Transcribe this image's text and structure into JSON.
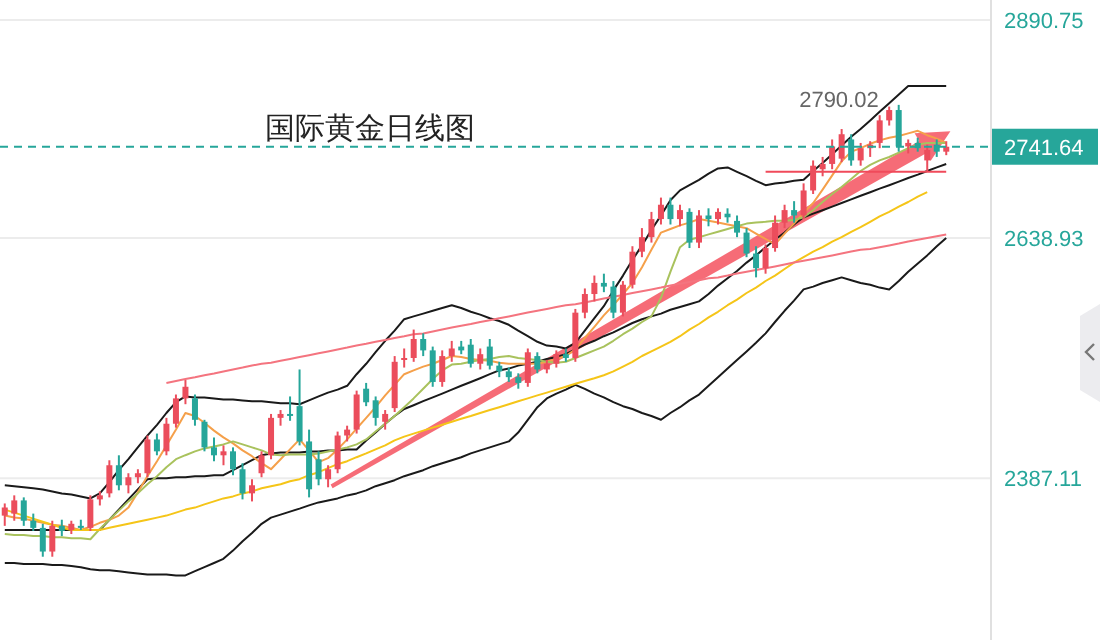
{
  "chart_data": {
    "type": "candlestick",
    "title": "国际黄金日线图",
    "categories": [
      null,
      null,
      null,
      null,
      null,
      null,
      null,
      null,
      null,
      null,
      null,
      null,
      null,
      null,
      null,
      null,
      null,
      null,
      null,
      null,
      null,
      null,
      null,
      null,
      null,
      null,
      null,
      null,
      null,
      null,
      null,
      null,
      null,
      null,
      null,
      null,
      null,
      null,
      null,
      null,
      null,
      null,
      null,
      null,
      null,
      null,
      null,
      null,
      null,
      null,
      null,
      null,
      null,
      null,
      null,
      null,
      null,
      null,
      null,
      null,
      null,
      null,
      null,
      null,
      null,
      null,
      null,
      null,
      null,
      null,
      null,
      null,
      null,
      null,
      null,
      null,
      null,
      null,
      null,
      null,
      null,
      null,
      null,
      null,
      null,
      null,
      null,
      null,
      null,
      null,
      null,
      null,
      null,
      null,
      null,
      null,
      null,
      null,
      null,
      null
    ],
    "ohlc": [
      [
        2350,
        2362,
        2340,
        2358
      ],
      [
        2352,
        2370,
        2345,
        2365
      ],
      [
        2365,
        2368,
        2340,
        2345
      ],
      [
        2345,
        2352,
        2335,
        2338
      ],
      [
        2338,
        2342,
        2310,
        2315
      ],
      [
        2315,
        2345,
        2310,
        2340
      ],
      [
        2340,
        2346,
        2330,
        2335
      ],
      [
        2336,
        2345,
        2332,
        2342
      ],
      [
        2340,
        2346,
        2336,
        2338
      ],
      [
        2338,
        2370,
        2335,
        2366
      ],
      [
        2366,
        2374,
        2360,
        2370
      ],
      [
        2372,
        2405,
        2368,
        2400
      ],
      [
        2400,
        2410,
        2375,
        2380
      ],
      [
        2380,
        2392,
        2372,
        2388
      ],
      [
        2388,
        2396,
        2382,
        2392
      ],
      [
        2392,
        2430,
        2388,
        2426
      ],
      [
        2426,
        2432,
        2410,
        2414
      ],
      [
        2414,
        2448,
        2410,
        2442
      ],
      [
        2442,
        2472,
        2438,
        2468
      ],
      [
        2468,
        2487,
        2462,
        2480
      ],
      [
        2468,
        2472,
        2440,
        2446
      ],
      [
        2444,
        2446,
        2414,
        2418
      ],
      [
        2418,
        2428,
        2404,
        2410
      ],
      [
        2410,
        2420,
        2400,
        2414
      ],
      [
        2414,
        2418,
        2390,
        2396
      ],
      [
        2396,
        2402,
        2366,
        2372
      ],
      [
        2372,
        2386,
        2364,
        2380
      ],
      [
        2392,
        2414,
        2388,
        2410
      ],
      [
        2410,
        2452,
        2406,
        2448
      ],
      [
        2448,
        2456,
        2440,
        2452
      ],
      [
        2452,
        2470,
        2445,
        2450
      ],
      [
        2460,
        2498,
        2420,
        2424
      ],
      [
        2424,
        2436,
        2368,
        2376
      ],
      [
        2406,
        2414,
        2380,
        2386
      ],
      [
        2386,
        2400,
        2378,
        2396
      ],
      [
        2396,
        2434,
        2392,
        2430
      ],
      [
        2430,
        2440,
        2424,
        2436
      ],
      [
        2436,
        2476,
        2432,
        2472
      ],
      [
        2478,
        2484,
        2460,
        2464
      ],
      [
        2466,
        2470,
        2440,
        2448
      ],
      [
        2444,
        2456,
        2436,
        2452
      ],
      [
        2458,
        2512,
        2454,
        2506
      ],
      [
        2508,
        2520,
        2500,
        2510
      ],
      [
        2510,
        2540,
        2506,
        2530
      ],
      [
        2530,
        2536,
        2512,
        2518
      ],
      [
        2518,
        2522,
        2480,
        2485
      ],
      [
        2485,
        2518,
        2480,
        2512
      ],
      [
        2512,
        2528,
        2506,
        2520
      ],
      [
        2522,
        2528,
        2514,
        2518
      ],
      [
        2524,
        2530,
        2500,
        2504
      ],
      [
        2504,
        2520,
        2498,
        2514
      ],
      [
        2522,
        2530,
        2498,
        2502
      ],
      [
        2502,
        2506,
        2490,
        2496
      ],
      [
        2496,
        2500,
        2485,
        2490
      ],
      [
        2490,
        2494,
        2478,
        2484
      ],
      [
        2484,
        2520,
        2480,
        2516
      ],
      [
        2512,
        2516,
        2494,
        2498
      ],
      [
        2498,
        2508,
        2494,
        2504
      ],
      [
        2504,
        2518,
        2500,
        2514
      ],
      [
        2514,
        2520,
        2506,
        2510
      ],
      [
        2510,
        2562,
        2506,
        2558
      ],
      [
        2558,
        2584,
        2552,
        2578
      ],
      [
        2578,
        2598,
        2570,
        2590
      ],
      [
        2590,
        2600,
        2580,
        2586
      ],
      [
        2586,
        2592,
        2552,
        2558
      ],
      [
        2558,
        2592,
        2554,
        2588
      ],
      [
        2588,
        2630,
        2584,
        2624
      ],
      [
        2624,
        2650,
        2618,
        2640
      ],
      [
        2640,
        2668,
        2634,
        2660
      ],
      [
        2660,
        2684,
        2654,
        2676
      ],
      [
        2676,
        2684,
        2654,
        2660
      ],
      [
        2660,
        2676,
        2652,
        2670
      ],
      [
        2668,
        2672,
        2628,
        2634
      ],
      [
        2634,
        2670,
        2628,
        2664
      ],
      [
        2664,
        2672,
        2652,
        2660
      ],
      [
        2660,
        2672,
        2654,
        2668
      ],
      [
        2666,
        2672,
        2656,
        2662
      ],
      [
        2658,
        2664,
        2640,
        2645
      ],
      [
        2645,
        2650,
        2618,
        2622
      ],
      [
        2622,
        2630,
        2596,
        2606
      ],
      [
        2606,
        2632,
        2600,
        2628
      ],
      [
        2628,
        2664,
        2624,
        2656
      ],
      [
        2656,
        2676,
        2650,
        2670
      ],
      [
        2670,
        2680,
        2656,
        2664
      ],
      [
        2664,
        2700,
        2660,
        2692
      ],
      [
        2692,
        2726,
        2688,
        2720
      ],
      [
        2716,
        2730,
        2708,
        2722
      ],
      [
        2722,
        2750,
        2716,
        2742
      ],
      [
        2728,
        2762,
        2724,
        2756
      ],
      [
        2750,
        2756,
        2720,
        2726
      ],
      [
        2726,
        2746,
        2720,
        2740
      ],
      [
        2740,
        2748,
        2730,
        2744
      ],
      [
        2746,
        2778,
        2740,
        2772
      ],
      [
        2772,
        2788,
        2766,
        2784
      ],
      [
        2784,
        2790.02,
        2736,
        2742
      ],
      [
        2742,
        2750,
        2734,
        2746
      ],
      [
        2746,
        2752,
        2736,
        2740
      ],
      [
        2726,
        2744,
        2714,
        2738
      ],
      [
        2744,
        2750,
        2730,
        2736
      ],
      [
        2736,
        2748,
        2732,
        2741.64
      ]
    ],
    "colors": [
      "#eb4d5c",
      "#eb4d5c",
      "#26a69a",
      "#26a69a",
      "#26a69a",
      "#eb4d5c",
      "#26a69a",
      "#eb4d5c",
      "#26a69a",
      "#eb4d5c",
      "#eb4d5c",
      "#eb4d5c",
      "#26a69a",
      "#eb4d5c",
      "#eb4d5c",
      "#eb4d5c",
      "#26a69a",
      "#eb4d5c",
      "#eb4d5c",
      "#eb4d5c",
      "#26a69a",
      "#26a69a",
      "#26a69a",
      "#eb4d5c",
      "#26a69a",
      "#26a69a",
      "#eb4d5c",
      "#eb4d5c",
      "#eb4d5c",
      "#eb4d5c",
      "#26a69a",
      "#26a69a",
      "#26a69a",
      "#26a69a",
      "#eb4d5c",
      "#eb4d5c",
      "#eb4d5c",
      "#eb4d5c",
      "#26a69a",
      "#26a69a",
      "#eb4d5c",
      "#eb4d5c",
      "#eb4d5c",
      "#eb4d5c",
      "#26a69a",
      "#26a69a",
      "#eb4d5c",
      "#eb4d5c",
      "#26a69a",
      "#26a69a",
      "#eb4d5c",
      "#26a69a",
      "#26a69a",
      "#26a69a",
      "#26a69a",
      "#eb4d5c",
      "#26a69a",
      "#eb4d5c",
      "#eb4d5c",
      "#26a69a",
      "#eb4d5c",
      "#eb4d5c",
      "#eb4d5c",
      "#26a69a",
      "#26a69a",
      "#eb4d5c",
      "#eb4d5c",
      "#eb4d5c",
      "#eb4d5c",
      "#eb4d5c",
      "#26a69a",
      "#eb4d5c",
      "#26a69a",
      "#eb4d5c",
      "#26a69a",
      "#eb4d5c",
      "#26a69a",
      "#26a69a",
      "#26a69a",
      "#26a69a",
      "#eb4d5c",
      "#eb4d5c",
      "#eb4d5c",
      "#26a69a",
      "#eb4d5c",
      "#eb4d5c",
      "#eb4d5c",
      "#eb4d5c",
      "#eb4d5c",
      "#26a69a",
      "#eb4d5c",
      "#eb4d5c",
      "#eb4d5c",
      "#eb4d5c",
      "#26a69a",
      "#eb4d5c",
      "#26a69a",
      "#eb4d5c",
      "#26a69a",
      "#eb4d5c"
    ],
    "series": [
      {
        "type": "line",
        "color": "#1a1a1a",
        "values": [
          2380,
          2379,
          2378,
          2377,
          2376,
          2374,
          2372,
          2371,
          2369,
          2367,
          2372,
          2383,
          2395,
          2406,
          2418,
          2430,
          2441,
          2453,
          2464,
          2470,
          2469,
          2469,
          2468,
          2467,
          2467,
          2466,
          2465,
          2465,
          2464,
          2463,
          2463,
          2462,
          2466,
          2470,
          2474,
          2477,
          2481,
          2493,
          2504,
          2516,
          2528,
          2539,
          2551,
          2554,
          2557,
          2560,
          2563,
          2566,
          2563,
          2559,
          2556,
          2552,
          2549,
          2545,
          2539,
          2533,
          2527,
          2523,
          2522,
          2520,
          2526,
          2539,
          2552,
          2565,
          2582,
          2598,
          2615,
          2631,
          2648,
          2664,
          2681,
          2692,
          2698,
          2704,
          2711,
          2717,
          2718,
          2713,
          2708,
          2703,
          2698,
          2700,
          2701,
          2703,
          2704,
          2714,
          2723,
          2733,
          2743,
          2753,
          2762,
          2772,
          2782,
          2792,
          2802,
          2812,
          2812,
          2812,
          2812,
          2812
        ]
      },
      {
        "type": "line",
        "color": "#1a1a1a",
        "values": [
          2336,
          2336,
          2336,
          2336,
          2336,
          2336,
          2336,
          2336,
          2336,
          2336,
          2336,
          2346,
          2356,
          2366,
          2376,
          2386,
          2387,
          2387,
          2388,
          2388,
          2389,
          2389,
          2390,
          2390,
          2395,
          2400,
          2405,
          2410,
          2412,
          2413,
          2413,
          2413,
          2414,
          2414,
          2415,
          2415,
          2416,
          2416,
          2425,
          2433,
          2442,
          2450,
          2457,
          2461,
          2465,
          2469,
          2473,
          2477,
          2481,
          2485,
          2489,
          2493,
          2497,
          2499,
          2502,
          2504,
          2506,
          2509,
          2511,
          2514,
          2519,
          2524,
          2528,
          2533,
          2537,
          2542,
          2547,
          2551,
          2554,
          2557,
          2561,
          2564,
          2567,
          2570,
          2578,
          2587,
          2595,
          2603,
          2612,
          2620,
          2629,
          2637,
          2645,
          2654,
          2662,
          2666,
          2670,
          2674,
          2678,
          2682,
          2686,
          2690,
          2694,
          2698,
          2702,
          2706,
          2710,
          2714,
          2718,
          2722
        ]
      },
      {
        "type": "line",
        "color": "#1a1a1a",
        "values": [
          2304,
          2304,
          2303,
          2303,
          2303,
          2302,
          2302,
          2301,
          2300,
          2298,
          2297,
          2297,
          2296,
          2295,
          2294,
          2293,
          2293,
          2293,
          2292,
          2292,
          2296,
          2300,
          2304,
          2308,
          2316,
          2325,
          2333,
          2342,
          2348,
          2351,
          2354,
          2357,
          2360,
          2363,
          2365,
          2367,
          2370,
          2372,
          2375,
          2379,
          2382,
          2385,
          2389,
          2392,
          2395,
          2399,
          2402,
          2405,
          2408,
          2412,
          2415,
          2418,
          2421,
          2424,
          2433,
          2446,
          2459,
          2468,
          2473,
          2477,
          2482,
          2478,
          2473,
          2469,
          2464,
          2460,
          2457,
          2453,
          2450,
          2446,
          2453,
          2459,
          2466,
          2472,
          2481,
          2490,
          2499,
          2508,
          2517,
          2526,
          2536,
          2548,
          2560,
          2571,
          2583,
          2586,
          2590,
          2593,
          2596,
          2593,
          2590,
          2588,
          2585,
          2583,
          2592,
          2602,
          2611,
          2620,
          2630,
          2639
        ]
      },
      {
        "type": "line",
        "color": "#f5a04a",
        "values": [
          2350,
          2348,
          2347,
          2345,
          2343,
          2341,
          2340,
          2338,
          2336,
          2339,
          2343,
          2346,
          2350,
          2358,
          2373,
          2389,
          2404,
          2420,
          2436,
          2453,
          2450,
          2443,
          2435,
          2428,
          2422,
          2415,
          2409,
          2402,
          2396,
          2406,
          2416,
          2426,
          2415,
          2403,
          2407,
          2416,
          2426,
          2437,
          2448,
          2459,
          2471,
          2482,
          2493,
          2497,
          2501,
          2504,
          2508,
          2512,
          2511,
          2509,
          2508,
          2507,
          2505,
          2504,
          2504,
          2504,
          2504,
          2506,
          2509,
          2512,
          2519,
          2531,
          2543,
          2555,
          2566,
          2578,
          2590,
          2607,
          2626,
          2645,
          2649,
          2653,
          2656,
          2660,
          2658,
          2656,
          2654,
          2652,
          2650,
          2644,
          2638,
          2632,
          2644,
          2655,
          2667,
          2678,
          2693,
          2709,
          2725,
          2736,
          2740,
          2745,
          2749,
          2752,
          2754,
          2757,
          2760,
          2755,
          2751,
          2746
        ]
      },
      {
        "type": "line",
        "color": "#a9c25d",
        "values": [
          2332,
          2331,
          2331,
          2330,
          2330,
          2329,
          2329,
          2328,
          2328,
          2327,
          2337,
          2346,
          2355,
          2364,
          2372,
          2381,
          2389,
          2398,
          2406,
          2410,
          2414,
          2417,
          2419,
          2421,
          2424,
          2421,
          2418,
          2415,
          2411,
          2410,
          2411,
          2411,
          2411,
          2412,
          2414,
          2416,
          2418,
          2421,
          2426,
          2434,
          2442,
          2450,
          2459,
          2468,
          2478,
          2488,
          2497,
          2503,
          2504,
          2506,
          2508,
          2509,
          2511,
          2512,
          2510,
          2509,
          2508,
          2506,
          2505,
          2506,
          2510,
          2514,
          2518,
          2522,
          2528,
          2535,
          2541,
          2548,
          2554,
          2574,
          2602,
          2629,
          2637,
          2640,
          2643,
          2646,
          2649,
          2652,
          2655,
          2656,
          2657,
          2658,
          2658,
          2659,
          2662,
          2670,
          2679,
          2688,
          2696,
          2705,
          2714,
          2721,
          2726,
          2730,
          2735,
          2740,
          2744,
          2746,
          2746,
          2746
        ]
      },
      {
        "type": "line",
        "color": "#f5c518",
        "values": [
          2356,
          2353,
          2350,
          2347,
          2344,
          2341,
          2338,
          2336,
          2336,
          2336,
          2336,
          2338,
          2340,
          2342,
          2344,
          2346,
          2348,
          2350,
          2353,
          2356,
          2358,
          2361,
          2364,
          2367,
          2369,
          2372,
          2374,
          2377,
          2379,
          2381,
          2384,
          2386,
          2390,
          2393,
          2397,
          2401,
          2404,
          2408,
          2412,
          2416,
          2420,
          2425,
          2429,
          2432,
          2435,
          2438,
          2441,
          2444,
          2447,
          2450,
          2453,
          2456,
          2459,
          2462,
          2465,
          2468,
          2471,
          2474,
          2477,
          2480,
          2483,
          2486,
          2489,
          2492,
          2496,
          2501,
          2506,
          2512,
          2517,
          2522,
          2527,
          2533,
          2540,
          2546,
          2553,
          2559,
          2566,
          2572,
          2579,
          2585,
          2592,
          2598,
          2605,
          2612,
          2618,
          2624,
          2629,
          2635,
          2640,
          2646,
          2651,
          2657,
          2663,
          2668,
          2674,
          2679,
          2685,
          2690,
          null,
          null
        ]
      },
      {
        "type": "line",
        "color": "#f4747f",
        "values": [
          null,
          null,
          null,
          null,
          null,
          null,
          null,
          null,
          null,
          null,
          null,
          null,
          null,
          null,
          null,
          null,
          null,
          2484,
          2486,
          2488,
          2490,
          2492,
          2494,
          2496,
          2498,
          2500,
          2502,
          2504,
          2505,
          2507,
          2509,
          2511,
          2513,
          2515,
          2517,
          2519,
          2521,
          2523,
          2525,
          2527,
          2529,
          2531,
          2533,
          2535,
          2536,
          2538,
          2540,
          2542,
          2544,
          2546,
          2548,
          2550,
          2552,
          2554,
          2556,
          2558,
          2560,
          2562,
          2564,
          2566,
          2567,
          2569,
          2571,
          2573,
          2575,
          2577,
          2579,
          2581,
          2583,
          2585,
          2587,
          2589,
          2591,
          2593,
          2595,
          2596,
          2598,
          2600,
          2602,
          2604,
          2606,
          2608,
          2610,
          2612,
          2614,
          2616,
          2618,
          2620,
          2622,
          2624,
          2626,
          2627,
          2629,
          2631,
          2633,
          2635,
          2637,
          2639,
          2641,
          2643
        ]
      },
      {
        "type": "line",
        "color": "#f04a5a",
        "values": [
          null,
          null,
          null,
          null,
          null,
          null,
          null,
          null,
          null,
          null,
          null,
          null,
          null,
          null,
          null,
          null,
          null,
          null,
          null,
          null,
          null,
          null,
          null,
          null,
          null,
          null,
          null,
          null,
          null,
          null,
          null,
          null,
          null,
          null,
          null,
          null,
          null,
          null,
          null,
          null,
          null,
          null,
          null,
          null,
          null,
          null,
          null,
          null,
          null,
          null,
          null,
          null,
          null,
          null,
          null,
          null,
          null,
          null,
          null,
          null,
          null,
          null,
          null,
          null,
          null,
          null,
          null,
          null,
          null,
          null,
          null,
          null,
          null,
          null,
          null,
          null,
          null,
          null,
          null,
          null,
          2713,
          2713,
          2713,
          2713,
          2713,
          2713,
          2713,
          2713,
          2713,
          2713,
          2713,
          2713,
          2713,
          2713,
          2713,
          2713,
          2713,
          2713,
          2713,
          2713
        ]
      }
    ],
    "ylim": [
      2231,
      2915
    ],
    "log": true,
    "yticks": [
      {
        "value": 2387.11,
        "label": "2387.11"
      },
      {
        "value": 2638.93,
        "label": "2638.93"
      },
      {
        "value": 2890.75,
        "label": "2890.75"
      }
    ],
    "grid": "y",
    "tick_labels": "y",
    "ref_lines": [
      {
        "axis": "y",
        "value": 2741.64,
        "label": "2741.64",
        "color": "#26a69a",
        "line_style": "dashed"
      }
    ],
    "annotations": [
      "2790.02"
    ]
  }
}
